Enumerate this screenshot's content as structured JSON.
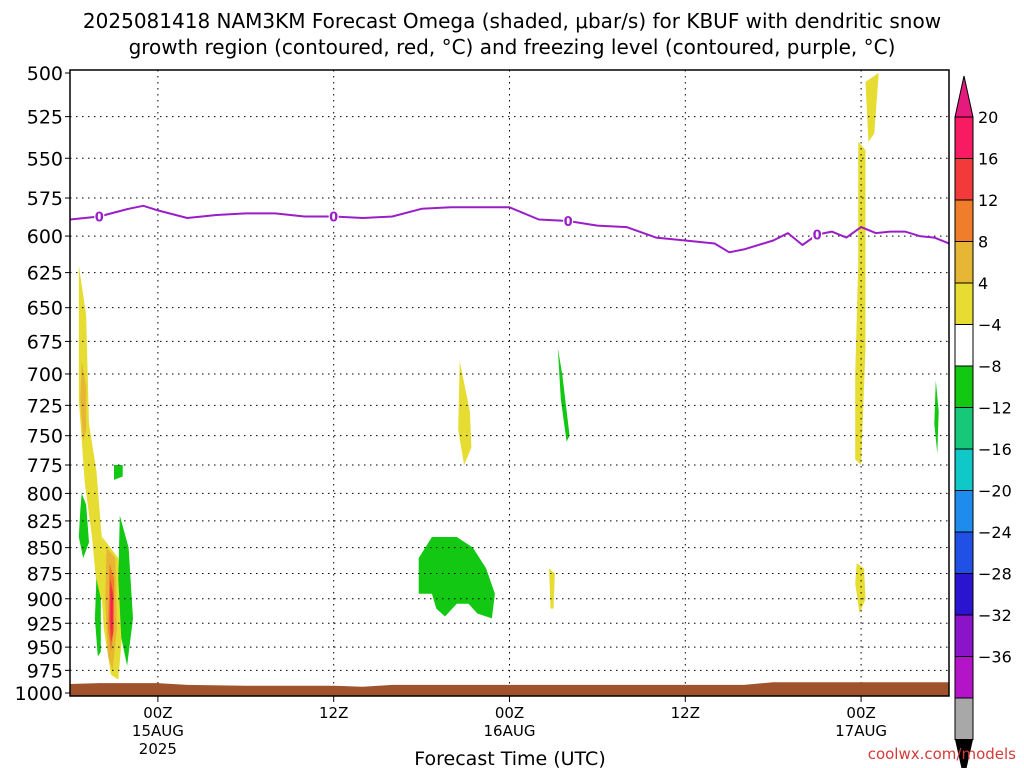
{
  "chart_data": {
    "type": "heatmap",
    "title_line1": "2025081418 NAM3KM Forecast Omega (shaded, μbar/s) for KBUF with dendritic snow",
    "title_line2": "growth region (contoured, red, °C) and freezing level (contoured, purple, °C)",
    "xlabel": "Forecast Time (UTC)",
    "x_ticks": [
      {
        "hour": 6,
        "label": "00Z",
        "sub": "15AUG",
        "sub2": "2025"
      },
      {
        "hour": 18,
        "label": "12Z",
        "sub": "",
        "sub2": ""
      },
      {
        "hour": 30,
        "label": "00Z",
        "sub": "16AUG",
        "sub2": ""
      },
      {
        "hour": 42,
        "label": "12Z",
        "sub": "",
        "sub2": ""
      },
      {
        "hour": 54,
        "label": "00Z",
        "sub": "17AUG",
        "sub2": ""
      }
    ],
    "x_gridlines_hours": [
      6,
      18,
      30,
      42,
      54
    ],
    "xlim_hours": [
      0,
      60
    ],
    "ylim_mb": [
      500,
      1000
    ],
    "y_scale": "log-pressure, inverted",
    "y_ticks": [
      500,
      525,
      550,
      575,
      600,
      625,
      650,
      675,
      700,
      725,
      750,
      775,
      800,
      825,
      850,
      875,
      900,
      925,
      950,
      975,
      1000
    ],
    "colorbar": {
      "labels": [
        "20",
        "16",
        "12",
        "8",
        "4",
        "−4",
        "−8",
        "−12",
        "−16",
        "−20",
        "−24",
        "−28",
        "−32",
        "−36"
      ],
      "colors": [
        "#f81a63",
        "#f33a3a",
        "#ef7d2a",
        "#e6b634",
        "#e6dc32",
        "#ffffff",
        "#12c812",
        "#16c878",
        "#10c8c8",
        "#1e8ced",
        "#2050e6",
        "#2a14d0",
        "#8c14c8",
        "#b414c8",
        "#a8a8a8"
      ],
      "top_arrow_color": "#e6197d",
      "bottom_arrow_color": "#000000"
    },
    "freezing_level": {
      "color": "#9a1ec8",
      "label": "0",
      "label_hours": [
        2,
        18,
        34,
        51
      ],
      "points": [
        [
          0,
          589
        ],
        [
          2,
          587
        ],
        [
          4,
          582
        ],
        [
          5,
          580
        ],
        [
          6,
          583
        ],
        [
          8,
          588
        ],
        [
          10,
          586
        ],
        [
          12,
          585
        ],
        [
          14,
          585
        ],
        [
          16,
          587
        ],
        [
          18,
          587
        ],
        [
          20,
          588
        ],
        [
          22,
          587
        ],
        [
          24,
          582
        ],
        [
          26,
          581
        ],
        [
          28,
          581
        ],
        [
          30,
          581
        ],
        [
          32,
          589
        ],
        [
          34,
          590
        ],
        [
          36,
          593
        ],
        [
          38,
          594
        ],
        [
          40,
          601
        ],
        [
          42,
          603
        ],
        [
          44,
          605
        ],
        [
          45,
          611
        ],
        [
          46,
          609
        ],
        [
          48,
          603
        ],
        [
          49,
          598
        ],
        [
          50,
          606
        ],
        [
          51,
          599
        ],
        [
          52,
          597
        ],
        [
          53,
          601
        ],
        [
          54,
          594
        ],
        [
          55,
          598
        ],
        [
          56,
          597
        ],
        [
          57,
          597
        ],
        [
          58,
          600
        ],
        [
          59,
          601
        ],
        [
          60,
          605
        ]
      ]
    },
    "omega_areas": [
      {
        "value": 4,
        "points": [
          [
            0.6,
            620
          ],
          [
            1.1,
            655
          ],
          [
            1.3,
            740
          ],
          [
            1.8,
            780
          ],
          [
            2.2,
            845
          ],
          [
            2.4,
            900
          ],
          [
            1.9,
            900
          ],
          [
            1.5,
            840
          ],
          [
            1.0,
            790
          ],
          [
            0.6,
            720
          ]
        ]
      },
      {
        "value": 8,
        "points": [
          [
            0.8,
            690
          ],
          [
            1.1,
            710
          ],
          [
            1.1,
            745
          ],
          [
            0.9,
            755
          ],
          [
            0.7,
            720
          ]
        ]
      },
      {
        "value": 4,
        "points": [
          [
            2.2,
            840
          ],
          [
            3.3,
            860
          ],
          [
            3.6,
            930
          ],
          [
            3.3,
            985
          ],
          [
            2.8,
            980
          ],
          [
            2.3,
            930
          ],
          [
            2.1,
            880
          ]
        ]
      },
      {
        "value": 8,
        "points": [
          [
            2.5,
            850
          ],
          [
            3.1,
            860
          ],
          [
            3.2,
            930
          ],
          [
            2.9,
            975
          ],
          [
            2.6,
            960
          ],
          [
            2.4,
            900
          ]
        ]
      },
      {
        "value": 12,
        "points": [
          [
            2.7,
            865
          ],
          [
            3.0,
            880
          ],
          [
            3.0,
            930
          ],
          [
            2.8,
            955
          ],
          [
            2.6,
            930
          ]
        ]
      },
      {
        "value": 16,
        "points": [
          [
            2.75,
            880
          ],
          [
            2.95,
            895
          ],
          [
            2.95,
            935
          ],
          [
            2.8,
            945
          ],
          [
            2.7,
            920
          ]
        ]
      },
      {
        "value": 20,
        "points": [
          [
            2.8,
            890
          ],
          [
            2.9,
            900
          ],
          [
            2.9,
            925
          ],
          [
            2.8,
            935
          ]
        ]
      },
      {
        "value": -4,
        "points": [
          [
            0.8,
            800
          ],
          [
            1.1,
            810
          ],
          [
            1.3,
            845
          ],
          [
            0.9,
            860
          ],
          [
            0.6,
            840
          ],
          [
            0.7,
            815
          ]
        ]
      },
      {
        "value": -4,
        "points": [
          [
            1.8,
            880
          ],
          [
            2.1,
            900
          ],
          [
            2.1,
            955
          ],
          [
            1.9,
            960
          ],
          [
            1.7,
            920
          ]
        ]
      },
      {
        "value": -4,
        "points": [
          [
            3.4,
            820
          ],
          [
            4.0,
            850
          ],
          [
            4.3,
            920
          ],
          [
            3.9,
            970
          ],
          [
            3.5,
            940
          ],
          [
            3.3,
            880
          ]
        ]
      },
      {
        "value": -4,
        "points": [
          [
            3.0,
            775
          ],
          [
            3.6,
            775
          ],
          [
            3.6,
            785
          ],
          [
            3.0,
            788
          ]
        ]
      },
      {
        "value": -4,
        "points": [
          [
            23.8,
            860
          ],
          [
            24.7,
            840
          ],
          [
            26.4,
            840
          ],
          [
            27.5,
            850
          ],
          [
            28.4,
            870
          ],
          [
            29.0,
            895
          ],
          [
            28.8,
            920
          ],
          [
            27.8,
            915
          ],
          [
            27.2,
            905
          ],
          [
            26.4,
            905
          ],
          [
            25.6,
            918
          ],
          [
            25.0,
            910
          ],
          [
            24.7,
            895
          ],
          [
            23.8,
            895
          ]
        ]
      },
      {
        "value": -4,
        "points": [
          [
            33.3,
            680
          ],
          [
            33.6,
            700
          ],
          [
            34.1,
            750
          ],
          [
            33.9,
            755
          ],
          [
            33.5,
            720
          ]
        ]
      },
      {
        "value": 4,
        "points": [
          [
            26.6,
            690
          ],
          [
            27.3,
            730
          ],
          [
            27.4,
            760
          ],
          [
            26.9,
            775
          ],
          [
            26.5,
            745
          ]
        ]
      },
      {
        "value": 4,
        "points": [
          [
            32.7,
            870
          ],
          [
            33.1,
            875
          ],
          [
            33.0,
            910
          ],
          [
            32.8,
            910
          ]
        ]
      },
      {
        "value": 4,
        "points": [
          [
            53.8,
            540
          ],
          [
            54.3,
            545
          ],
          [
            54.3,
            680
          ],
          [
            54.0,
            775
          ],
          [
            53.6,
            770
          ],
          [
            53.6,
            700
          ],
          [
            53.8,
            620
          ]
        ]
      },
      {
        "value": 4,
        "points": [
          [
            54.3,
            505
          ],
          [
            55.2,
            500
          ],
          [
            54.9,
            535
          ],
          [
            54.5,
            540
          ]
        ]
      },
      {
        "value": 4,
        "points": [
          [
            53.7,
            865
          ],
          [
            54.2,
            870
          ],
          [
            54.3,
            900
          ],
          [
            53.9,
            915
          ],
          [
            53.6,
            885
          ]
        ]
      },
      {
        "value": -4,
        "points": [
          [
            59.1,
            705
          ],
          [
            59.3,
            730
          ],
          [
            59.2,
            765
          ],
          [
            59.0,
            740
          ]
        ]
      }
    ],
    "ground": {
      "color": "#a0522d",
      "points": [
        [
          0,
          990
        ],
        [
          2,
          989
        ],
        [
          4,
          989
        ],
        [
          6,
          989
        ],
        [
          8,
          991
        ],
        [
          12,
          992
        ],
        [
          18,
          992
        ],
        [
          20,
          993
        ],
        [
          22,
          991
        ],
        [
          30,
          991
        ],
        [
          40,
          991
        ],
        [
          46,
          991
        ],
        [
          48,
          988
        ],
        [
          54,
          988
        ],
        [
          58,
          988
        ],
        [
          60,
          988
        ]
      ]
    }
  },
  "credit": "coolwx.com/models"
}
